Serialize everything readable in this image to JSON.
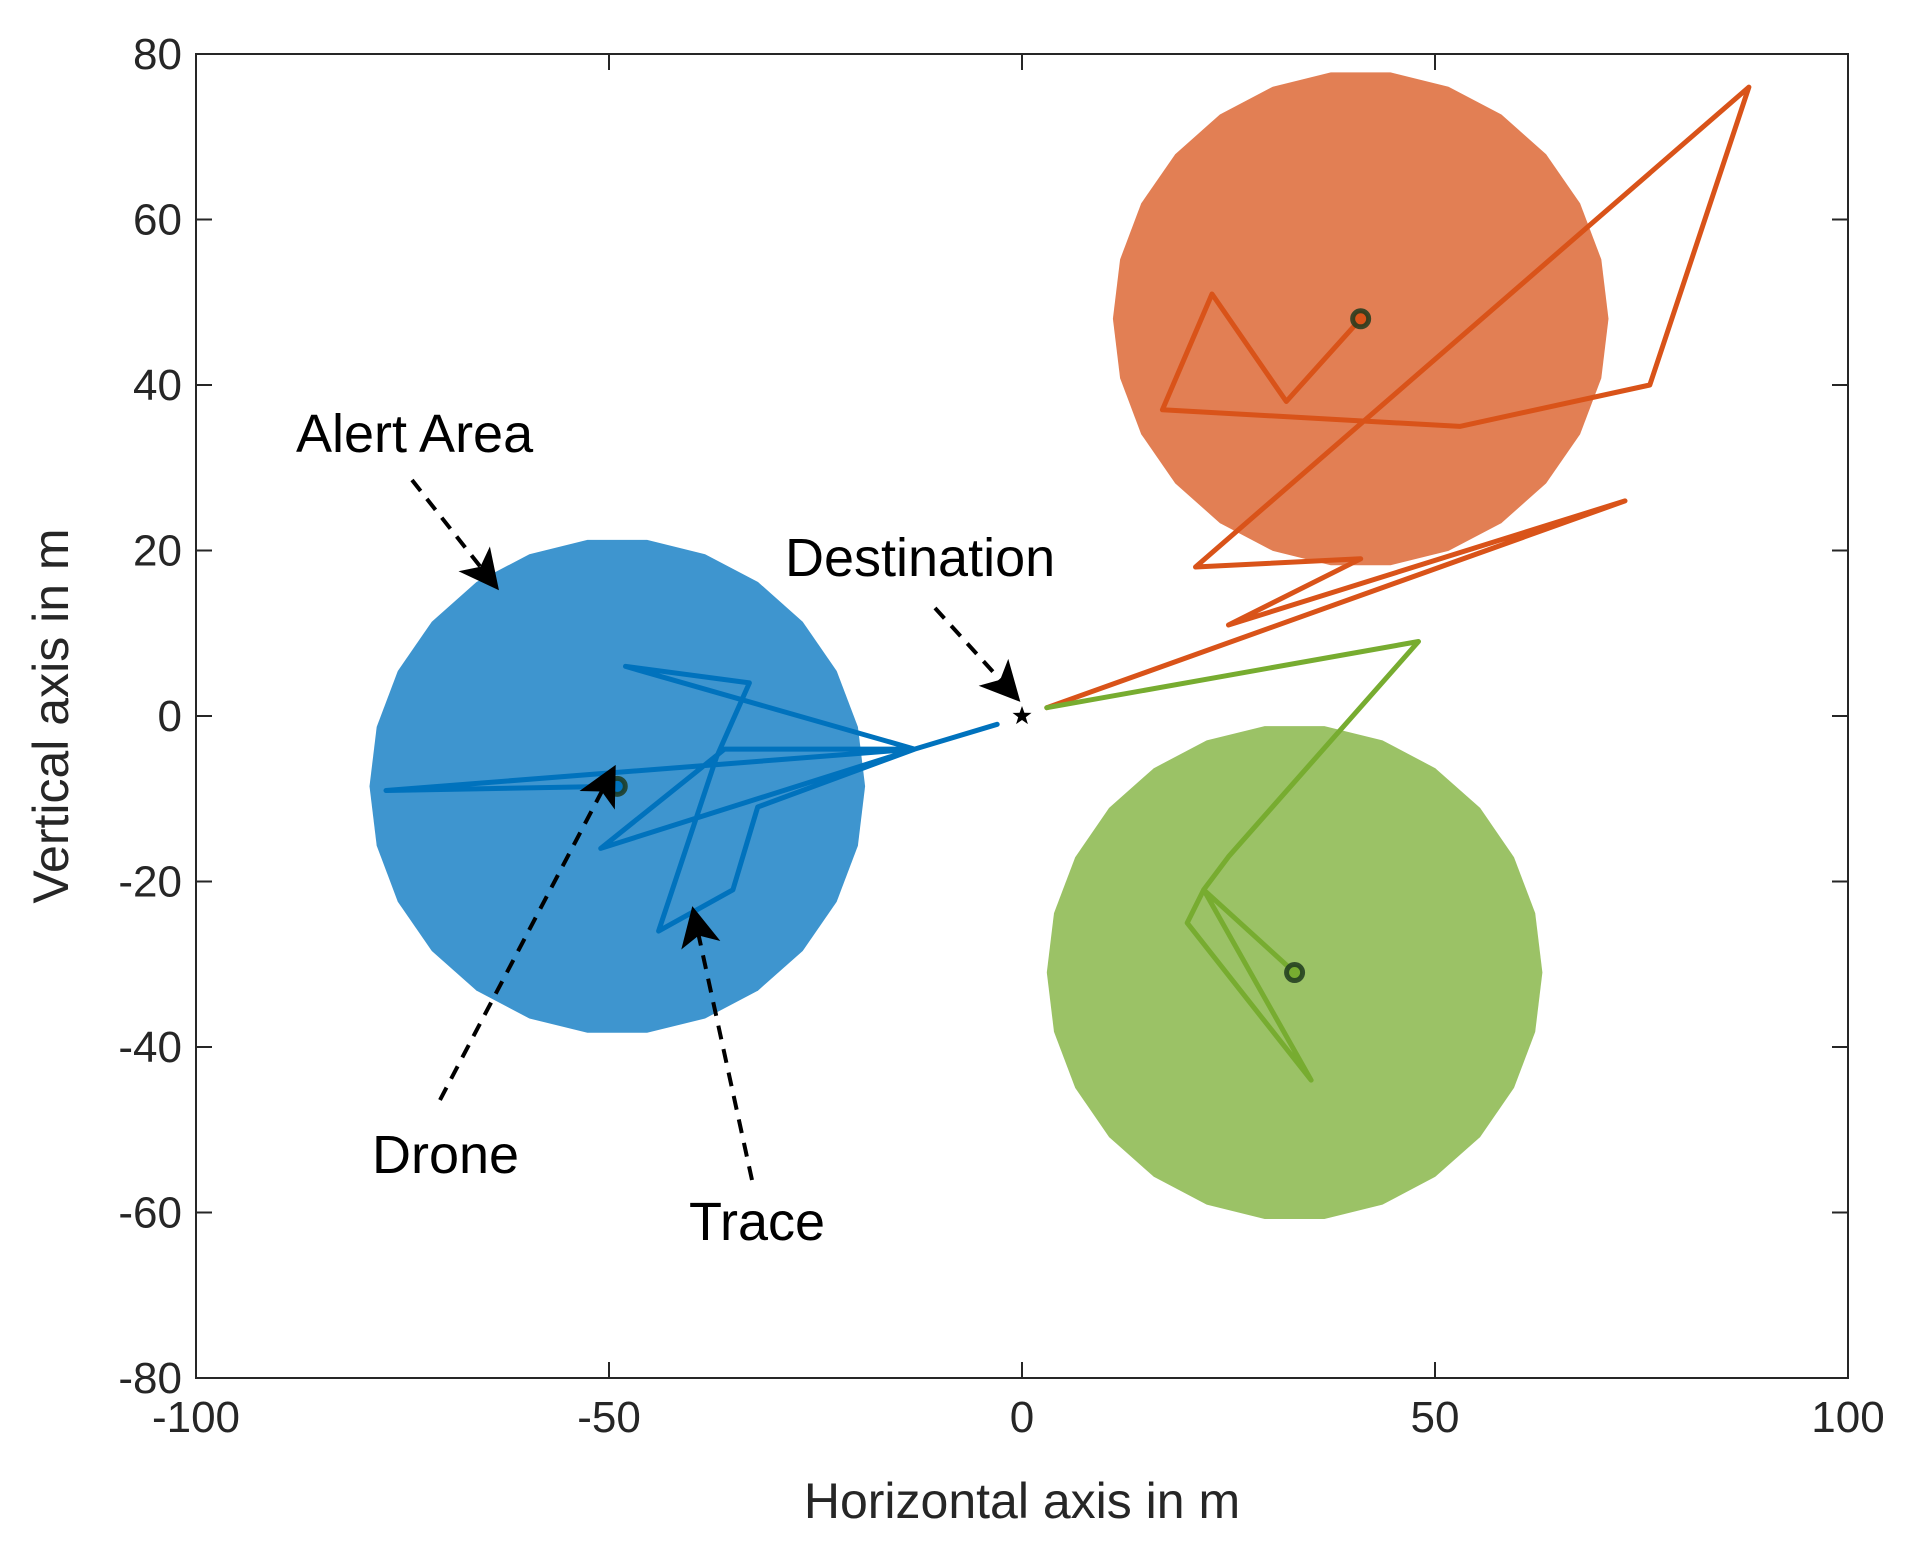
{
  "chart_data": {
    "type": "scatter",
    "xlabel": "Horizontal axis in m",
    "ylabel": "Vertical axis in m",
    "xlim": [
      -100,
      100
    ],
    "ylim": [
      -80,
      80
    ],
    "xticks": [
      -100,
      -50,
      0,
      50,
      100
    ],
    "yticks": [
      -80,
      -60,
      -40,
      -20,
      0,
      20,
      40,
      60,
      80
    ],
    "xtick_labels": [
      "-100",
      "-50",
      "0",
      "50",
      "100"
    ],
    "ytick_labels": [
      "-80",
      "-60",
      "-40",
      "-20",
      "0",
      "20",
      "40",
      "60",
      "80"
    ],
    "grid": false,
    "destination": {
      "x": 0,
      "y": 0,
      "marker": "star"
    },
    "drones": [
      {
        "color": "#0072BD",
        "area_color": "#3E95CF",
        "position": {
          "x": -49,
          "y": -8.5
        },
        "alert_radius": 30,
        "trace": [
          [
            -3,
            -1
          ],
          [
            -13,
            -4
          ],
          [
            -36,
            -4
          ],
          [
            -51,
            -16
          ],
          [
            -13,
            -4
          ],
          [
            -48,
            6
          ],
          [
            -33,
            4
          ],
          [
            -37,
            -5
          ],
          [
            -44,
            -26
          ],
          [
            -35,
            -21
          ],
          [
            -32,
            -11
          ],
          [
            -13,
            -4
          ],
          [
            -77,
            -9
          ],
          [
            -49,
            -8.5
          ]
        ]
      },
      {
        "color": "#D95319",
        "area_color": "#E27F54",
        "position": {
          "x": 41,
          "y": 48
        },
        "alert_radius": 30,
        "trace": [
          [
            3,
            1
          ],
          [
            73,
            26
          ],
          [
            25,
            11
          ],
          [
            41,
            19
          ],
          [
            21,
            18
          ],
          [
            88,
            76
          ],
          [
            76,
            40
          ],
          [
            53,
            35
          ],
          [
            17,
            37
          ],
          [
            23,
            51
          ],
          [
            32,
            38
          ],
          [
            41,
            48
          ]
        ]
      },
      {
        "color": "#77AC30",
        "area_color": "#9BC266",
        "position": {
          "x": 33,
          "y": -31
        },
        "alert_radius": 30,
        "trace": [
          [
            3,
            1
          ],
          [
            48,
            9
          ],
          [
            25,
            -17
          ],
          [
            22,
            -21
          ],
          [
            20,
            -25
          ],
          [
            35,
            -44
          ],
          [
            22,
            -21
          ],
          [
            33,
            -31
          ]
        ]
      }
    ],
    "annotations": [
      {
        "text": "Alert Area"
      },
      {
        "text": "Destination"
      },
      {
        "text": "Drone"
      },
      {
        "text": "Trace"
      }
    ]
  }
}
